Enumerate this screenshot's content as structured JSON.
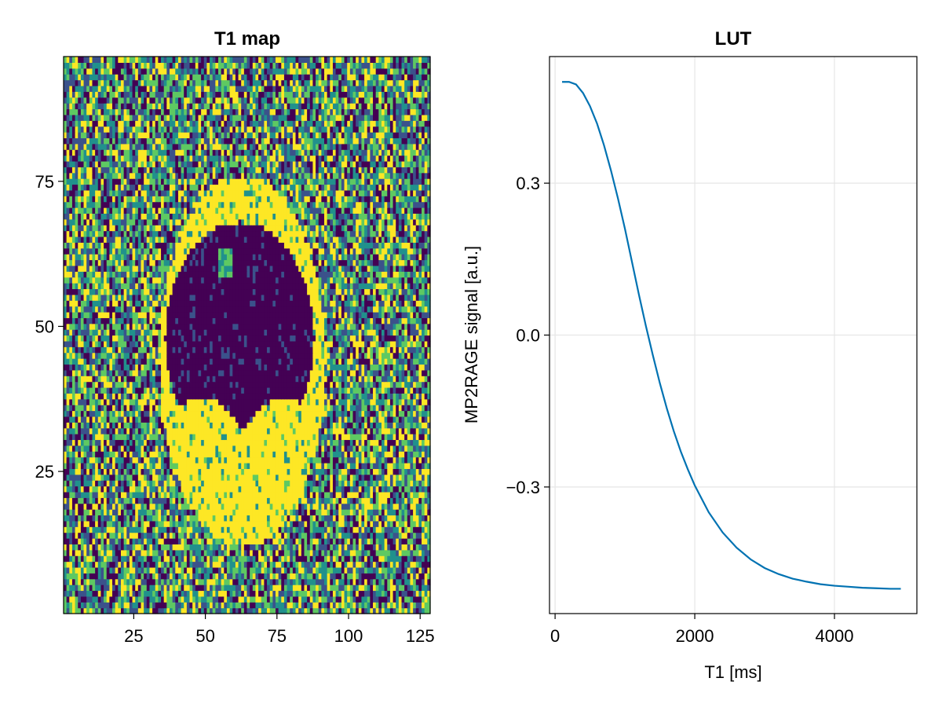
{
  "colors": {
    "line": "#0072b2",
    "viridis": [
      "#440154",
      "#3b528b",
      "#21918c",
      "#5ec962",
      "#fde725"
    ],
    "grid": "#e6e6e6",
    "frame": "#000000"
  },
  "chart_data": [
    {
      "type": "heatmap",
      "title": "T1 map",
      "xlabel": "",
      "ylabel": "",
      "colormap": "viridis",
      "xlim": [
        0.5,
        128.5
      ],
      "ylim": [
        0.5,
        96.5
      ],
      "grid_size": [
        128,
        96
      ],
      "xticks": [
        25,
        50,
        75,
        100,
        125
      ],
      "yticks": [
        25,
        50,
        75
      ],
      "xtick_labels": [
        "25",
        "50",
        "75",
        "100",
        "125"
      ],
      "ytick_labels": [
        "25",
        "50",
        "75"
      ],
      "regions": {
        "background": "random noise across all colormap levels",
        "bright_ring_ellipse": {
          "center": [
            63,
            44
          ],
          "radii": [
            29,
            32
          ],
          "level": 1.0
        },
        "dark_interior_ellipse": {
          "center": [
            62,
            48
          ],
          "radii": [
            26,
            20
          ],
          "level": 0.03
        },
        "bright_spot": {
          "center": [
            57,
            61
          ],
          "level": 0.55
        }
      },
      "grid": false
    },
    {
      "type": "line",
      "title": "LUT",
      "xlabel": "T1 [ms]",
      "ylabel": "MP2RAGE signal [a.u.]",
      "xlim": [
        -80,
        5180
      ],
      "ylim": [
        -0.55,
        0.55
      ],
      "xticks": [
        0,
        2000,
        4000
      ],
      "yticks": [
        -0.3,
        0.0,
        0.3
      ],
      "xtick_labels": [
        "0",
        "2000",
        "4000"
      ],
      "ytick_labels": [
        "−0.3",
        "0.0",
        "0.3"
      ],
      "grid": true,
      "series": [
        {
          "x": [
            100,
            200,
            300,
            400,
            500,
            600,
            700,
            800,
            900,
            1000,
            1100,
            1200,
            1300,
            1400,
            1500,
            1600,
            1700,
            1800,
            1900,
            2000,
            2200,
            2400,
            2600,
            2800,
            3000,
            3200,
            3400,
            3600,
            3800,
            4000,
            4200,
            4400,
            4600,
            4800,
            4950
          ],
          "y": [
            0.5,
            0.5,
            0.495,
            0.478,
            0.452,
            0.418,
            0.375,
            0.325,
            0.27,
            0.21,
            0.145,
            0.08,
            0.018,
            -0.04,
            -0.095,
            -0.145,
            -0.19,
            -0.23,
            -0.265,
            -0.297,
            -0.35,
            -0.39,
            -0.42,
            -0.443,
            -0.46,
            -0.472,
            -0.481,
            -0.487,
            -0.492,
            -0.495,
            -0.497,
            -0.499,
            -0.5,
            -0.501,
            -0.501
          ]
        }
      ]
    }
  ]
}
